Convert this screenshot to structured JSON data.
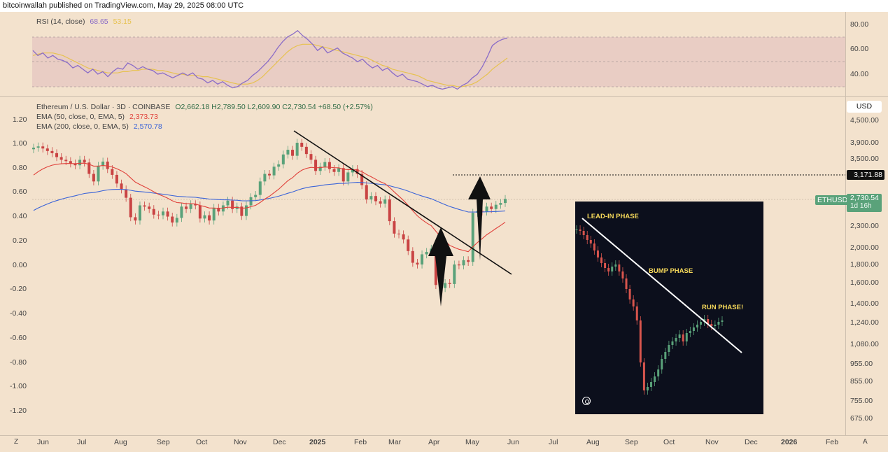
{
  "header": {
    "publish_line": "bitcoinwallah published on TradingView.com, May 29, 2025 08:00 UTC"
  },
  "rsi": {
    "label": "RSI (14, close)",
    "value": "68.65",
    "ma_value": "53.15",
    "axis_ticks": [
      "80.00",
      "60.00",
      "40.00"
    ],
    "upper_band": 70,
    "lower_band": 30,
    "series": [
      59,
      55,
      57,
      53,
      55,
      52,
      51,
      49,
      45,
      47,
      44,
      41,
      44,
      40,
      42,
      38,
      42,
      45,
      44,
      49,
      47,
      44,
      46,
      44,
      43,
      40,
      41,
      39,
      37,
      39,
      41,
      39,
      41,
      37,
      36,
      33,
      35,
      32,
      34,
      31,
      29,
      30,
      33,
      35,
      39,
      42,
      46,
      50,
      55,
      61,
      66,
      70,
      72,
      75,
      71,
      68,
      64,
      59,
      62,
      57,
      59,
      61,
      57,
      55,
      53,
      50,
      52,
      48,
      45,
      47,
      43,
      45,
      41,
      38,
      40,
      36,
      35,
      34,
      32,
      30,
      31,
      29,
      28,
      29,
      30,
      28,
      31,
      33,
      37,
      40,
      46,
      54,
      63,
      66,
      68,
      69
    ],
    "ma_series": [
      55,
      56,
      57,
      57,
      57,
      56,
      55,
      53,
      51,
      49,
      47,
      45,
      44,
      43,
      42,
      41,
      41,
      41,
      42,
      42,
      43,
      43,
      44,
      44,
      44,
      43,
      43,
      42,
      41,
      40,
      40,
      39,
      39,
      39,
      38,
      38,
      37,
      36,
      35,
      34,
      33,
      32,
      32,
      32,
      33,
      35,
      38,
      42,
      46,
      50,
      54,
      58,
      61,
      63,
      64,
      64,
      64,
      63,
      62,
      61,
      60,
      59,
      58,
      57,
      56,
      55,
      54,
      53,
      51,
      49,
      47,
      46,
      44,
      43,
      42,
      41,
      40,
      39,
      37,
      35,
      34,
      33,
      32,
      31,
      31,
      30,
      30,
      31,
      32,
      34,
      37,
      40,
      44,
      47,
      50,
      53
    ]
  },
  "price_legend": {
    "symbol_line": "Ethereum / U.S. Dollar · 3D · COINBASE",
    "ohlc": "O2,662.18 H2,789.50 L2,609.90 C2,730.54 +68.50 (+2.57%)",
    "ema50_label": "EMA (50, close, 0, EMA, 5)",
    "ema50_value": "2,373.73",
    "ema200_label": "EMA (200, close, 0, EMA, 5)",
    "ema200_value": "2,570.78"
  },
  "left_axis_ticks": [
    "1.20",
    "1.00",
    "0.80",
    "0.60",
    "0.40",
    "0.20",
    "0.00",
    "-0.20",
    "-0.40",
    "-0.60",
    "-0.80",
    "-1.00",
    "-1.20"
  ],
  "right_axis_ticks": [
    "4,500.00",
    "3,900.00",
    "3,500.00",
    "2,300.00",
    "2,000.00",
    "1,800.00",
    "1,600.00",
    "1,400.00",
    "1,240.00",
    "1,080.00",
    "955.00",
    "855.00",
    "755.00",
    "675.00"
  ],
  "currency": "USD",
  "level_badge": "3,171.88",
  "ticker_badge": {
    "symbol": "ETHUSD",
    "price": "2,730.54",
    "countdown": "1d 16h"
  },
  "x_axis_ticks": [
    "Jun",
    "Jul",
    "Aug",
    "Sep",
    "Oct",
    "Nov",
    "Dec",
    "2025",
    "Feb",
    "Mar",
    "Apr",
    "May",
    "Jun",
    "Jul",
    "Aug",
    "Sep",
    "Oct",
    "Nov",
    "Dec",
    "2026",
    "Feb"
  ],
  "corner_buttons": {
    "left": "Z",
    "right": "A"
  },
  "inset": {
    "phase_labels": [
      "LEAD-IN PHASE",
      "BUMP PHASE",
      "RUN PHASE!"
    ],
    "camera_icon": "camera-icon"
  },
  "colors": {
    "background": "#f3e2cd",
    "rsi_line": "#8a6cc7",
    "rsi_ma": "#e7c250",
    "ema50": "#e0403a",
    "ema200": "#3b64d8",
    "up_candle": "#5aa27a",
    "down_candle": "#c94343",
    "ticker_badge": "#5aa27a"
  },
  "chart_data": {
    "type": "candlestick",
    "title": "Ethereum / U.S. Dollar · 3D · COINBASE",
    "interval": "3D",
    "scale": "log",
    "ylabel": "USD",
    "ylim": [
      640,
      5000
    ],
    "x_range": [
      "2024-05-29",
      "2026-02-20"
    ],
    "last": {
      "open": 2662.18,
      "high": 2789.5,
      "low": 2609.9,
      "close": 2730.54,
      "change": 68.5,
      "change_pct": 2.57
    },
    "closes": [
      3780,
      3810,
      3760,
      3700,
      3650,
      3560,
      3500,
      3470,
      3420,
      3380,
      3500,
      3440,
      3200,
      3050,
      3370,
      3460,
      3300,
      3180,
      3010,
      2900,
      2750,
      2430,
      2380,
      2620,
      2600,
      2560,
      2470,
      2460,
      2520,
      2440,
      2350,
      2420,
      2600,
      2560,
      2640,
      2620,
      2410,
      2460,
      2380,
      2580,
      2520,
      2620,
      2700,
      2560,
      2600,
      2450,
      2620,
      2760,
      2800,
      3050,
      3200,
      3170,
      3350,
      3400,
      3620,
      3730,
      3590,
      3900,
      3800,
      3630,
      3500,
      3260,
      3350,
      3450,
      3300,
      3240,
      3320,
      3050,
      3230,
      3300,
      3200,
      2980,
      2720,
      2780,
      2690,
      2650,
      2720,
      2370,
      2190,
      2180,
      2110,
      1960,
      1820,
      1800,
      1920,
      1950,
      1990,
      1580,
      1550,
      1600,
      1590,
      1800,
      1790,
      1850,
      1830,
      2500,
      2530,
      2520,
      2600,
      2560,
      2630,
      2660,
      2730
    ],
    "series": [
      {
        "name": "EMA (50, close, 0, EMA, 5)",
        "last": 2373.73
      },
      {
        "name": "EMA (200, close, 0, EMA, 5)",
        "last": 2570.78
      }
    ],
    "annotations": [
      {
        "type": "horizontal_line",
        "y": 3171.88
      }
    ],
    "rsi": {
      "last": 68.65,
      "ma_last": 53.15
    }
  }
}
